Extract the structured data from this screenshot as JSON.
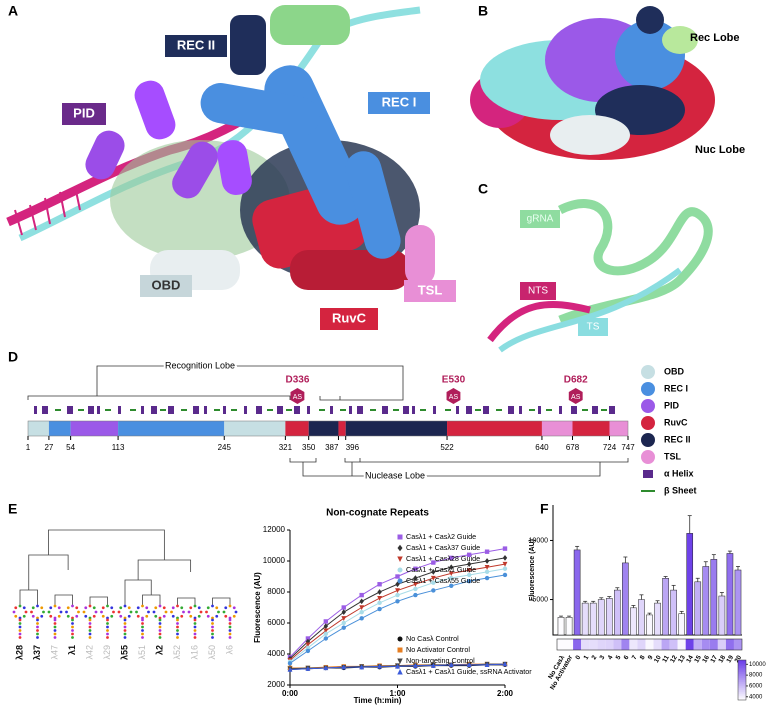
{
  "panel_labels": [
    "A",
    "B",
    "C",
    "D",
    "E",
    "F"
  ],
  "structure_a": {
    "labels": [
      {
        "text": "REC II",
        "color": "#1f2e5a",
        "text_color": "#ffffff"
      },
      {
        "text": "PID",
        "color": "#6a2a8a",
        "text_color": "#ffffff"
      },
      {
        "text": "REC I",
        "color": "#4a8fe0",
        "text_color": "#ffffff"
      },
      {
        "text": "OBD",
        "color": "#c6d6da",
        "text_color": "#333333"
      },
      {
        "text": "TSL",
        "color": "#e88fd6",
        "text_color": "#ffffff"
      },
      {
        "text": "RuvC",
        "color": "#d4243f",
        "text_color": "#ffffff"
      }
    ]
  },
  "structure_b": {
    "labels": [
      "Rec Lobe",
      "Nuc Lobe"
    ]
  },
  "structure_c": {
    "labels": [
      {
        "text": "gRNA",
        "color": "#8fdca0",
        "text_color": "#e8fff0"
      },
      {
        "text": "NTS",
        "color": "#c8246e",
        "text_color": "#ffffff"
      },
      {
        "text": "TS",
        "color": "#8adde0",
        "text_color": "#ffffff"
      }
    ]
  },
  "domain_map": {
    "lobes": [
      "Recognition Lobe",
      "Nuclease Lobe"
    ],
    "boundaries": [
      1,
      27,
      54,
      113,
      245,
      321,
      350,
      387,
      396,
      522,
      640,
      678,
      724,
      747
    ],
    "segments": [
      "OBD",
      "REC I",
      "PID",
      "REC I",
      "OBD",
      "RuvC",
      "REC II",
      "RuvC",
      "REC II",
      "RuvC",
      "TSL",
      "RuvC",
      "TSL"
    ],
    "domains": [
      {
        "name": "OBD",
        "color": "#c6dfe3"
      },
      {
        "name": "REC I",
        "color": "#4a8fe0"
      },
      {
        "name": "PID",
        "color": "#9b59e8"
      },
      {
        "name": "RuvC",
        "color": "#d4243f"
      },
      {
        "name": "REC II",
        "color": "#1c2650"
      },
      {
        "name": "TSL",
        "color": "#e88fd6"
      }
    ],
    "secondary_structure": [
      {
        "name": "α Helix",
        "color": "#5a2a8c"
      },
      {
        "name": "β Sheet",
        "color": "#2e8b2e"
      }
    ],
    "site_label": "AS",
    "site_color": "#b01e5a",
    "active_sites": [
      {
        "residue": "D336",
        "position": 336
      },
      {
        "residue": "E530",
        "position": 530
      },
      {
        "residue": "D682",
        "position": 682
      }
    ]
  },
  "dendrogram": {
    "leaves": [
      {
        "label": "λ28",
        "highlighted": true
      },
      {
        "label": "λ37",
        "highlighted": true
      },
      {
        "label": "λ47",
        "highlighted": false
      },
      {
        "label": "λ1",
        "highlighted": true
      },
      {
        "label": "λ42",
        "highlighted": false
      },
      {
        "label": "λ29",
        "highlighted": false
      },
      {
        "label": "λ55",
        "highlighted": true
      },
      {
        "label": "λ51",
        "highlighted": false
      },
      {
        "label": "λ2",
        "highlighted": true
      },
      {
        "label": "λ52",
        "highlighted": false
      },
      {
        "label": "λ16",
        "highlighted": false
      },
      {
        "label": "λ50",
        "highlighted": false
      },
      {
        "label": "λ6",
        "highlighted": false
      }
    ]
  },
  "chart_data": [
    {
      "type": "line",
      "title": "Non-cognate Repeats",
      "x_label": "Time (h:min)",
      "y_label": "Fluorescence (AU)",
      "x": [
        0,
        10,
        20,
        30,
        40,
        50,
        60,
        70,
        80,
        90,
        100,
        110,
        120
      ],
      "xlim": [
        0,
        120
      ],
      "xticks": [
        {
          "value": 0,
          "label": "0:00"
        },
        {
          "value": 60,
          "label": "1:00"
        },
        {
          "value": 120,
          "label": "2:00"
        }
      ],
      "ylim": [
        2000,
        12000
      ],
      "yticks": [
        2000,
        4000,
        6000,
        8000,
        10000,
        12000
      ],
      "series": [
        {
          "name": "Casλ1 + Casλ2 Guide",
          "color": "#9b5de5",
          "marker": "square",
          "legend": "upper",
          "values": [
            3800,
            5000,
            6100,
            7000,
            7800,
            8500,
            9000,
            9500,
            9900,
            10200,
            10400,
            10600,
            10800
          ]
        },
        {
          "name": "Casλ1 + Casλ37 Guide",
          "color": "#333333",
          "marker": "diamond",
          "legend": "upper",
          "values": [
            3700,
            4800,
            5800,
            6700,
            7400,
            8000,
            8500,
            8900,
            9300,
            9600,
            9800,
            10000,
            10200
          ]
        },
        {
          "name": "Casλ1 + Casλ28 Guide",
          "color": "#c0392b",
          "marker": "triangle-down",
          "legend": "upper",
          "values": [
            3600,
            4600,
            5500,
            6300,
            7000,
            7600,
            8100,
            8500,
            8900,
            9200,
            9400,
            9600,
            9800
          ]
        },
        {
          "name": "Casλ1 + Casλ1 Guide",
          "color": "#a8dce8",
          "marker": "circle",
          "legend": "upper",
          "values": [
            3500,
            4400,
            5300,
            6000,
            6700,
            7300,
            7800,
            8200,
            8600,
            8900,
            9100,
            9300,
            9500
          ]
        },
        {
          "name": "Casλ1 + Casλ55 Guide",
          "color": "#4a90d9",
          "marker": "circle",
          "legend": "upper",
          "values": [
            3400,
            4200,
            5000,
            5700,
            6300,
            6900,
            7400,
            7800,
            8100,
            8400,
            8700,
            8900,
            9100
          ]
        },
        {
          "name": "No Casλ Control",
          "color": "#111111",
          "marker": "circle",
          "legend": "lower",
          "values": [
            3000,
            3050,
            3100,
            3100,
            3150,
            3150,
            3200,
            3200,
            3250,
            3250,
            3250,
            3300,
            3300
          ]
        },
        {
          "name": "No Activator Control",
          "color": "#e67e22",
          "marker": "square",
          "legend": "lower",
          "values": [
            3100,
            3100,
            3150,
            3200,
            3200,
            3250,
            3250,
            3300,
            3300,
            3300,
            3350,
            3350,
            3350
          ]
        },
        {
          "name": "Non-targeting Control",
          "color": "#444444",
          "marker": "triangle-down",
          "legend": "lower",
          "values": [
            3050,
            3100,
            3100,
            3150,
            3200,
            3200,
            3250,
            3250,
            3300,
            3300,
            3300,
            3350,
            3350
          ]
        },
        {
          "name": "Casλ1 + Casλ1 Guide, ssRNA Activator",
          "color": "#3b5bdb",
          "marker": "triangle",
          "legend": "lower",
          "values": [
            3000,
            3050,
            3100,
            3150,
            3150,
            3200,
            3200,
            3250,
            3250,
            3300,
            3300,
            3300,
            3350
          ]
        }
      ]
    },
    {
      "type": "bar",
      "y_label": "Fluorescence (AU)",
      "categories": [
        "No Casλ",
        "No Activator",
        "0",
        "1",
        "2",
        "3",
        "4",
        "5",
        "6",
        "7",
        "8",
        "9",
        "10",
        "11",
        "12",
        "13",
        "14",
        "15",
        "16",
        "17",
        "18",
        "19",
        "20"
      ],
      "values": [
        3500,
        3500,
        9200,
        4700,
        4700,
        5000,
        5100,
        5800,
        8100,
        4300,
        5000,
        3700,
        4700,
        6800,
        5800,
        3800,
        10600,
        6500,
        7800,
        8400,
        5300,
        8900,
        7500
      ],
      "errors": [
        100,
        100,
        300,
        150,
        150,
        150,
        150,
        200,
        500,
        200,
        400,
        150,
        200,
        150,
        400,
        200,
        1500,
        300,
        400,
        400,
        300,
        200,
        300
      ],
      "ylim": [
        2000,
        13000
      ],
      "yticks": [
        5000,
        10000
      ],
      "colormap": [
        "#ffffff",
        "#6a3de8"
      ],
      "clim": [
        3400,
        10800
      ],
      "colorbar_ticks": [
        4000,
        6000,
        8000,
        10000
      ]
    }
  ]
}
